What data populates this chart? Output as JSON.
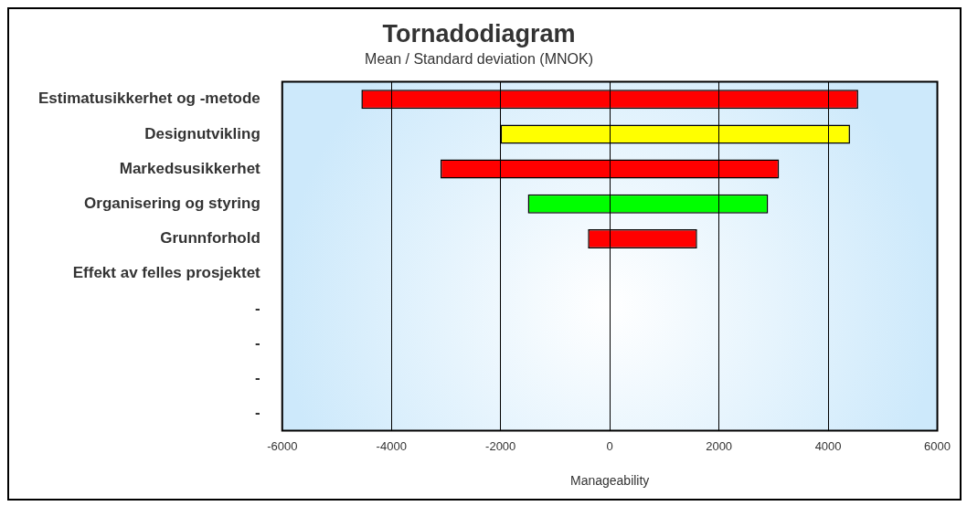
{
  "chart_data": {
    "type": "bar",
    "orientation": "horizontal",
    "title": "Tornadodiagram",
    "subtitle": "Mean / Standard deviation (MNOK)",
    "xlabel": "Manageability",
    "categories": [
      "Estimatusikkerhet og -metode",
      "Designutvikling",
      "Markedsusikkerhet",
      "Organisering og styring",
      "Grunnforhold",
      "Effekt av felles prosjektet",
      "-",
      "-",
      "-",
      "-"
    ],
    "base": [
      -4550,
      -2000,
      -3100,
      -1500,
      -400,
      null,
      null,
      null,
      null,
      null
    ],
    "values": [
      9100,
      6400,
      6200,
      4400,
      2000,
      null,
      null,
      null,
      null,
      null
    ],
    "colors": [
      "#ff0000",
      "#ffff00",
      "#ff0000",
      "#00ff00",
      "#ff0000",
      "#ff0000",
      "#ff0000",
      "#ff0000",
      "#ff0000",
      "#ff0000"
    ],
    "xlim": [
      -6000,
      6000
    ],
    "xticks": [
      -6000,
      -4000,
      -2000,
      0,
      2000,
      4000,
      6000
    ],
    "grid": "x",
    "legend": false
  }
}
